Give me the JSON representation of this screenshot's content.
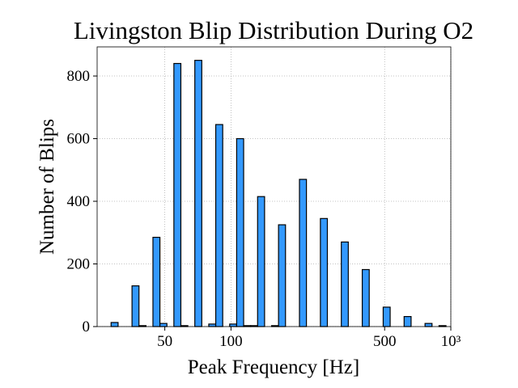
{
  "chart_data": {
    "type": "histogram",
    "title": "Livingston Blip Distribution During O2",
    "x_label": "Peak Frequency [Hz]",
    "y_label": "Number of Blips",
    "color": "#3399ff",
    "edge_color": "#000000",
    "x_log": true,
    "grid": true,
    "bins": [
      24.61,
      26.48,
      28.49,
      30.65,
      32.97,
      35.47,
      38.15,
      41.05,
      44.16,
      47.51,
      51.11,
      54.99,
      59.16,
      63.64,
      68.47,
      73.66,
      79.24,
      85.25,
      91.71,
      98.65,
      106.13,
      114.18,
      122.84,
      132.15,
      142.17,
      152.95,
      164.54,
      177.02,
      190.43,
      204.87,
      220.4,
      237.11,
      255.09,
      274.43,
      295.24,
      317.62,
      341.69,
      367.6,
      395.47,
      425.46,
      457.71,
      492.4,
      529.74,
      569.9,
      613.11,
      659.58,
      709.57,
      763.38,
      821.24,
      883.51,
      950.49
    ],
    "counts": [
      0,
      0,
      13,
      0,
      0,
      130,
      3,
      0,
      285,
      10,
      0,
      840,
      3,
      0,
      850,
      0,
      8,
      645,
      0,
      8,
      600,
      3,
      3,
      415,
      0,
      3,
      325,
      0,
      0,
      470,
      0,
      0,
      345,
      0,
      0,
      270,
      0,
      0,
      182,
      0,
      0,
      62,
      0,
      0,
      32,
      0,
      0,
      10,
      0,
      3
    ],
    "xlim": [
      24.61,
      1000
    ],
    "xticks": [
      50,
      100,
      500,
      {
        "value": 1000,
        "label": "10³"
      }
    ],
    "ylim": [
      0,
      893
    ],
    "yticks": [
      0,
      200,
      400,
      600,
      800
    ]
  }
}
